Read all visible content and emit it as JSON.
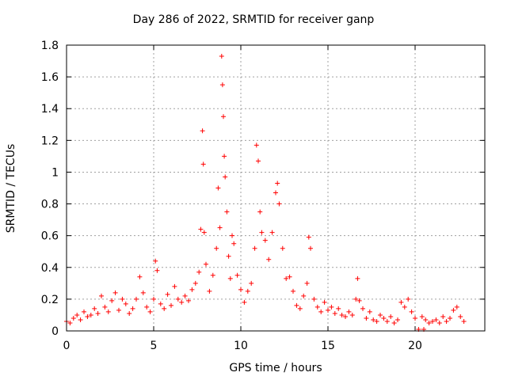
{
  "chart_data": {
    "type": "scatter",
    "title": "Day 286 of 2022, SRMTID for receiver ganp",
    "xlabel": "GPS time / hours",
    "ylabel": "SRMTID / TECUs",
    "xlim": [
      0,
      24
    ],
    "ylim": [
      0,
      1.8
    ],
    "xticks": [
      0,
      5,
      10,
      15,
      20
    ],
    "xtick_labels": [
      "0",
      "5",
      "10",
      "15",
      "20"
    ],
    "yticks": [
      0,
      0.2,
      0.4,
      0.6,
      0.8,
      1.0,
      1.2,
      1.4,
      1.6,
      1.8
    ],
    "ytick_labels": [
      "0",
      "0.2",
      "0.4",
      "0.6",
      "0.8",
      "1",
      "1.2",
      "1.4",
      "1.6",
      "1.8"
    ],
    "grid": true,
    "marker": "+",
    "color": "#ff0000",
    "series": [
      {
        "name": "SRMTID",
        "points": [
          [
            0.0,
            0.06
          ],
          [
            0.2,
            0.05
          ],
          [
            0.4,
            0.08
          ],
          [
            0.6,
            0.1
          ],
          [
            0.8,
            0.07
          ],
          [
            1.0,
            0.12
          ],
          [
            1.2,
            0.09
          ],
          [
            1.4,
            0.1
          ],
          [
            1.6,
            0.14
          ],
          [
            1.8,
            0.11
          ],
          [
            2.0,
            0.22
          ],
          [
            2.2,
            0.15
          ],
          [
            2.4,
            0.12
          ],
          [
            2.6,
            0.19
          ],
          [
            2.8,
            0.24
          ],
          [
            3.0,
            0.13
          ],
          [
            3.2,
            0.2
          ],
          [
            3.4,
            0.17
          ],
          [
            3.6,
            0.11
          ],
          [
            3.8,
            0.14
          ],
          [
            4.0,
            0.2
          ],
          [
            4.2,
            0.34
          ],
          [
            4.4,
            0.24
          ],
          [
            4.6,
            0.15
          ],
          [
            4.8,
            0.12
          ],
          [
            5.0,
            0.2
          ],
          [
            5.1,
            0.44
          ],
          [
            5.2,
            0.38
          ],
          [
            5.4,
            0.17
          ],
          [
            5.6,
            0.14
          ],
          [
            5.8,
            0.23
          ],
          [
            6.0,
            0.16
          ],
          [
            6.2,
            0.28
          ],
          [
            6.4,
            0.2
          ],
          [
            6.6,
            0.18
          ],
          [
            6.8,
            0.22
          ],
          [
            7.0,
            0.19
          ],
          [
            7.2,
            0.26
          ],
          [
            7.4,
            0.3
          ],
          [
            7.6,
            0.37
          ],
          [
            7.7,
            0.64
          ],
          [
            7.8,
            1.26
          ],
          [
            7.85,
            1.05
          ],
          [
            7.9,
            0.62
          ],
          [
            8.0,
            0.42
          ],
          [
            8.2,
            0.25
          ],
          [
            8.4,
            0.35
          ],
          [
            8.6,
            0.52
          ],
          [
            8.7,
            0.9
          ],
          [
            8.8,
            0.65
          ],
          [
            8.9,
            1.73
          ],
          [
            8.95,
            1.55
          ],
          [
            9.0,
            1.35
          ],
          [
            9.05,
            1.1
          ],
          [
            9.1,
            0.97
          ],
          [
            9.2,
            0.75
          ],
          [
            9.3,
            0.47
          ],
          [
            9.4,
            0.33
          ],
          [
            9.5,
            0.6
          ],
          [
            9.6,
            0.55
          ],
          [
            9.8,
            0.35
          ],
          [
            10.0,
            0.26
          ],
          [
            10.2,
            0.18
          ],
          [
            10.4,
            0.25
          ],
          [
            10.6,
            0.3
          ],
          [
            10.8,
            0.52
          ],
          [
            10.9,
            1.17
          ],
          [
            11.0,
            1.07
          ],
          [
            11.1,
            0.75
          ],
          [
            11.2,
            0.62
          ],
          [
            11.4,
            0.57
          ],
          [
            11.6,
            0.45
          ],
          [
            11.8,
            0.62
          ],
          [
            12.0,
            0.87
          ],
          [
            12.1,
            0.93
          ],
          [
            12.2,
            0.8
          ],
          [
            12.4,
            0.52
          ],
          [
            12.6,
            0.33
          ],
          [
            12.8,
            0.34
          ],
          [
            13.0,
            0.25
          ],
          [
            13.2,
            0.16
          ],
          [
            13.4,
            0.14
          ],
          [
            13.6,
            0.22
          ],
          [
            13.8,
            0.3
          ],
          [
            13.9,
            0.59
          ],
          [
            14.0,
            0.52
          ],
          [
            14.2,
            0.2
          ],
          [
            14.4,
            0.15
          ],
          [
            14.6,
            0.12
          ],
          [
            14.8,
            0.18
          ],
          [
            15.0,
            0.13
          ],
          [
            15.2,
            0.15
          ],
          [
            15.4,
            0.11
          ],
          [
            15.6,
            0.14
          ],
          [
            15.8,
            0.1
          ],
          [
            16.0,
            0.09
          ],
          [
            16.2,
            0.12
          ],
          [
            16.4,
            0.1
          ],
          [
            16.6,
            0.2
          ],
          [
            16.7,
            0.33
          ],
          [
            16.8,
            0.19
          ],
          [
            17.0,
            0.14
          ],
          [
            17.2,
            0.08
          ],
          [
            17.4,
            0.12
          ],
          [
            17.6,
            0.07
          ],
          [
            17.8,
            0.06
          ],
          [
            18.0,
            0.1
          ],
          [
            18.2,
            0.08
          ],
          [
            18.4,
            0.06
          ],
          [
            18.6,
            0.09
          ],
          [
            18.8,
            0.05
          ],
          [
            19.0,
            0.07
          ],
          [
            19.2,
            0.18
          ],
          [
            19.4,
            0.15
          ],
          [
            19.6,
            0.2
          ],
          [
            19.8,
            0.12
          ],
          [
            20.0,
            0.08
          ],
          [
            20.2,
            0.01
          ],
          [
            20.4,
            0.09
          ],
          [
            20.5,
            0.01
          ],
          [
            20.6,
            0.07
          ],
          [
            20.8,
            0.05
          ],
          [
            21.0,
            0.06
          ],
          [
            21.2,
            0.07
          ],
          [
            21.4,
            0.05
          ],
          [
            21.6,
            0.09
          ],
          [
            21.8,
            0.06
          ],
          [
            22.0,
            0.08
          ],
          [
            22.2,
            0.13
          ],
          [
            22.4,
            0.15
          ],
          [
            22.6,
            0.09
          ],
          [
            22.8,
            0.06
          ]
        ]
      }
    ]
  }
}
